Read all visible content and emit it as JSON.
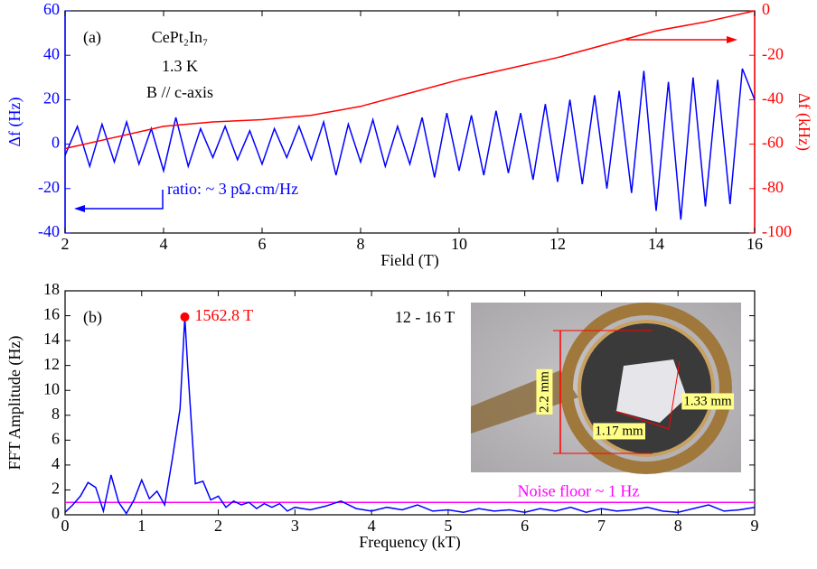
{
  "chart_data": [
    {
      "type": "line",
      "x_label": "Field (T)",
      "y_label": "Δf (Hz)",
      "y2_label": "Δf (kHz)",
      "xlim": [
        2,
        16
      ],
      "xticks": [
        2,
        4,
        6,
        8,
        10,
        12,
        14,
        16
      ],
      "ylim": [
        -40,
        60
      ],
      "yticks": [
        -40,
        -20,
        0,
        20,
        40,
        60
      ],
      "y2lim": [
        -100,
        0
      ],
      "y2ticks": [
        -100,
        -80,
        -60,
        -40,
        -20,
        0
      ],
      "annotations": [
        "(a)",
        "CePt₂In₇",
        "1.3 K",
        "B // c-axis",
        "ratio: ~ 3 pΩ.cm/Hz"
      ],
      "series": [
        {
          "name": "Δf (Hz)",
          "color": "#0000ff",
          "x": [
            2,
            2.25,
            2.5,
            2.75,
            3,
            3.25,
            3.5,
            3.75,
            4,
            4.25,
            4.5,
            4.75,
            5,
            5.25,
            5.5,
            5.75,
            6,
            6.25,
            6.5,
            6.75,
            7,
            7.25,
            7.5,
            7.75,
            8,
            8.25,
            8.5,
            8.75,
            9,
            9.25,
            9.5,
            9.75,
            10,
            10.25,
            10.5,
            10.75,
            11,
            11.25,
            11.5,
            11.75,
            12,
            12.25,
            12.5,
            12.75,
            13,
            13.25,
            13.5,
            13.75,
            14,
            14.25,
            14.5,
            14.75,
            15,
            15.25,
            15.5,
            15.75,
            16
          ],
          "values": [
            -5,
            8,
            -10,
            9,
            -8,
            10,
            -9,
            7,
            -12,
            12,
            -10,
            7,
            -6,
            8,
            -7,
            6,
            -9,
            7,
            -6,
            8,
            -7,
            10,
            -14,
            9,
            -8,
            11,
            -10,
            8,
            -9,
            12,
            -15,
            14,
            -12,
            13,
            -14,
            15,
            -13,
            14,
            -16,
            18,
            -17,
            20,
            -18,
            22,
            -20,
            24,
            -22,
            33,
            -30,
            28,
            -34,
            30,
            -28,
            29,
            -27,
            34,
            20
          ]
        },
        {
          "name": "Δf (kHz)",
          "color": "#ff0000",
          "axis": "y2",
          "x": [
            2,
            3,
            4,
            5,
            6,
            7,
            8,
            9,
            10,
            11,
            12,
            13,
            14,
            15,
            16
          ],
          "values": [
            -62,
            -57,
            -52,
            -50,
            -49,
            -47,
            -43,
            -37,
            -31,
            -26,
            -21,
            -15,
            -9,
            -5,
            0
          ]
        }
      ]
    },
    {
      "type": "line",
      "x_label": "Frequency (kT)",
      "y_label": "FFT Amplitude (Hz)",
      "xlim": [
        0,
        9
      ],
      "xticks": [
        0,
        1,
        2,
        3,
        4,
        5,
        6,
        7,
        8,
        9
      ],
      "ylim": [
        0,
        18
      ],
      "yticks": [
        0,
        2,
        4,
        6,
        8,
        10,
        12,
        14,
        16,
        18
      ],
      "annotations": [
        "(b)",
        "12 - 16 T"
      ],
      "peak": {
        "x": 1.5628,
        "y": 15.9,
        "label": "1562.8 T",
        "color": "#ff0000"
      },
      "noise_floor": {
        "value": 1,
        "label": "Noise floor ~ 1 Hz",
        "color": "#ff00ff"
      },
      "inset_labels": [
        "2.2 mm",
        "1.33 mm",
        "1.17 mm"
      ],
      "series": [
        {
          "name": "FFT Amplitude (Hz)",
          "color": "#0000ff",
          "x": [
            0,
            0.1,
            0.2,
            0.3,
            0.4,
            0.5,
            0.6,
            0.7,
            0.8,
            0.9,
            1.0,
            1.1,
            1.2,
            1.3,
            1.4,
            1.5,
            1.5628,
            1.6,
            1.7,
            1.8,
            1.9,
            2.0,
            2.1,
            2.2,
            2.3,
            2.4,
            2.5,
            2.6,
            2.7,
            2.8,
            2.9,
            3.0,
            3.2,
            3.4,
            3.6,
            3.8,
            4.0,
            4.2,
            4.4,
            4.6,
            4.8,
            5.0,
            5.2,
            5.4,
            5.6,
            5.8,
            6.0,
            6.2,
            6.4,
            6.6,
            6.8,
            7.0,
            7.2,
            7.4,
            7.6,
            7.8,
            8.0,
            8.2,
            8.4,
            8.6,
            8.8,
            9.0
          ],
          "values": [
            0.2,
            0.8,
            1.5,
            2.6,
            2.2,
            0.3,
            3.2,
            1.0,
            0.1,
            1.2,
            2.8,
            1.3,
            1.9,
            0.8,
            4.5,
            8.5,
            15.9,
            12,
            2.5,
            2.7,
            1.2,
            1.5,
            0.6,
            1.1,
            0.8,
            1.0,
            0.5,
            0.9,
            0.6,
            0.9,
            0.3,
            0.6,
            0.4,
            0.7,
            1.1,
            0.5,
            0.3,
            0.6,
            0.4,
            0.8,
            0.3,
            0.4,
            0.2,
            0.5,
            0.3,
            0.4,
            0.2,
            0.5,
            0.3,
            0.6,
            0.2,
            0.5,
            0.3,
            0.4,
            0.6,
            0.3,
            0.2,
            0.5,
            0.8,
            0.3,
            0.4,
            0.6
          ]
        }
      ]
    }
  ]
}
